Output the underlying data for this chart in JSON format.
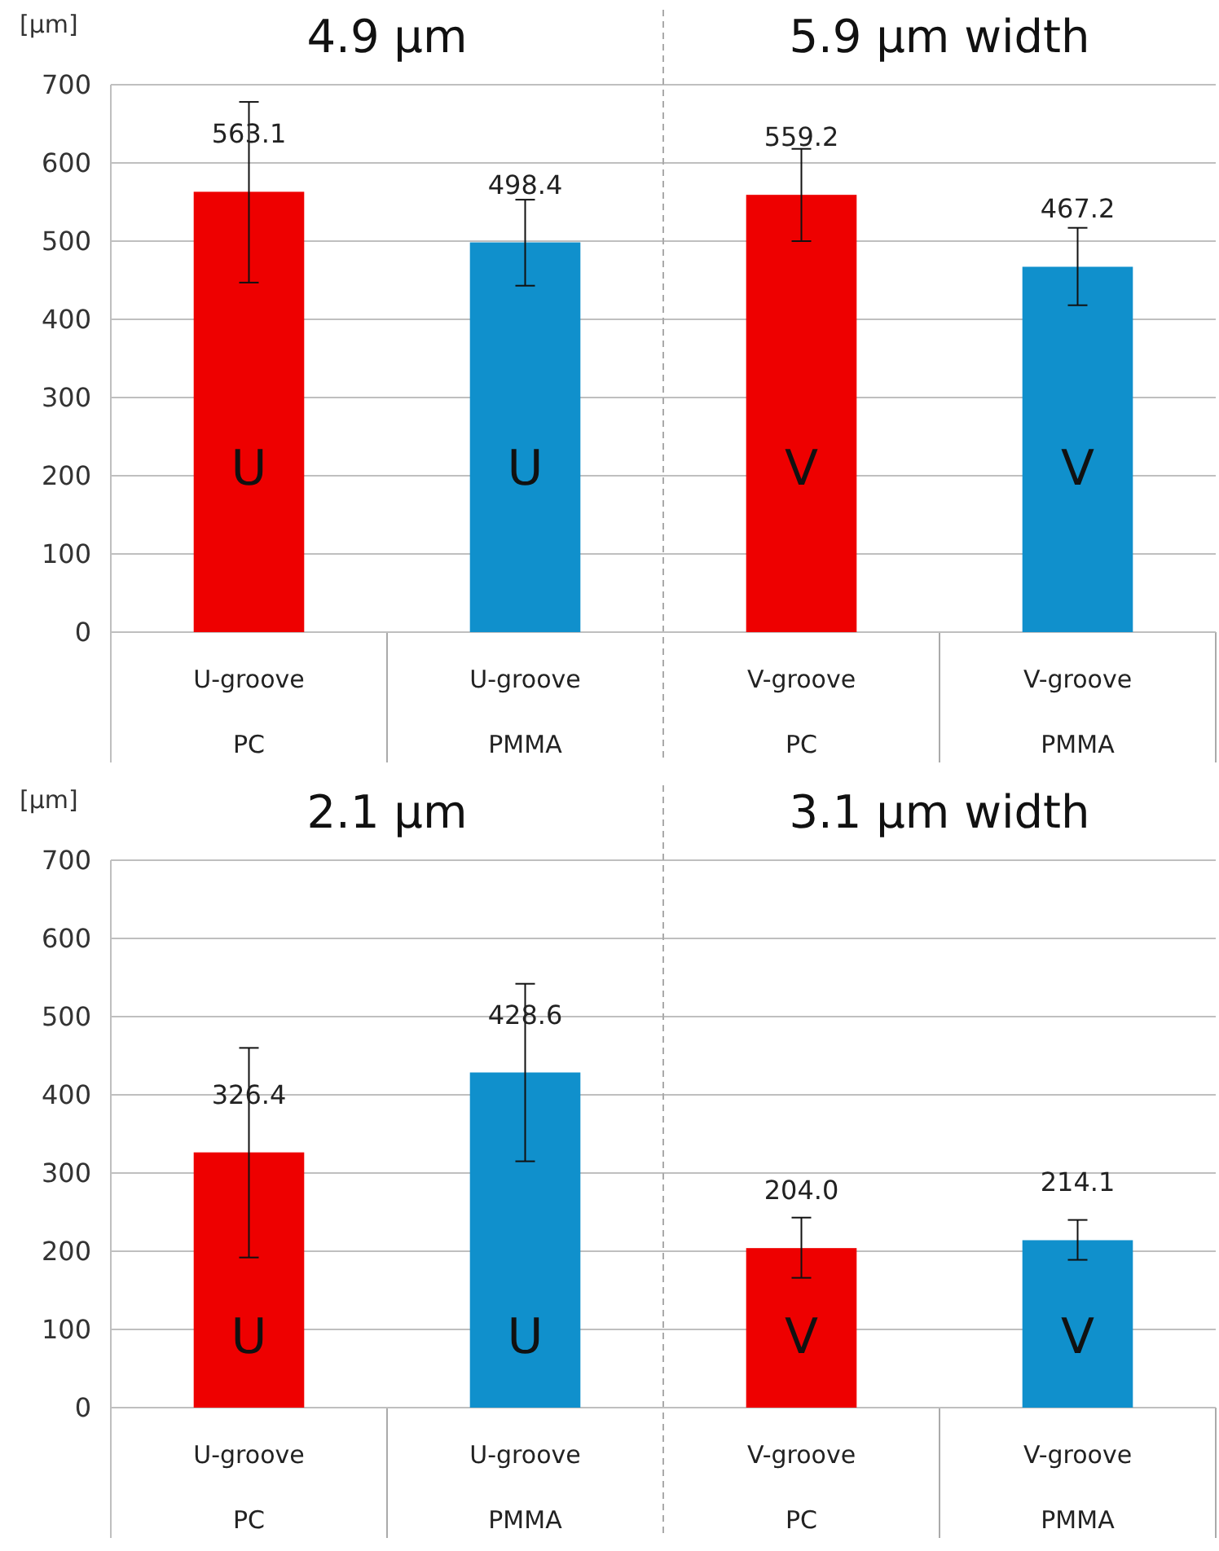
{
  "chart_data": [
    {
      "type": "bar",
      "ylabel": "[µm]",
      "annotations": [
        "4.9 µm",
        "5.9 µm width",
        "U",
        "U",
        "V",
        "V"
      ],
      "categories": [
        "U-groove\nPC",
        "U-groove\nPMMA",
        "V-groove\nPC",
        "V-groove\nPMMA"
      ],
      "values": [
        563.1,
        498.4,
        559.2,
        467.2
      ],
      "value_labels": [
        "563.1",
        "498.4",
        "559.2",
        "467.2"
      ],
      "errors": [
        [
          447,
          678
        ],
        [
          443,
          553
        ],
        [
          500,
          618
        ],
        [
          418,
          517
        ]
      ],
      "colors": [
        "#ee0000",
        "#1090cc",
        "#ee0000",
        "#1090cc"
      ],
      "ylim": [
        0,
        700
      ],
      "yticks": [
        0,
        100,
        200,
        300,
        400,
        500,
        600,
        700
      ],
      "grid": "y"
    },
    {
      "type": "bar",
      "ylabel": "[µm]",
      "annotations": [
        "2.1 µm",
        "3.1 µm width",
        "U",
        "U",
        "V",
        "V"
      ],
      "categories": [
        "U-groove\nPC",
        "U-groove\nPMMA",
        "V-groove\nPC",
        "V-groove\nPMMA"
      ],
      "values": [
        326.4,
        428.6,
        204.0,
        214.1
      ],
      "value_labels": [
        "326.4",
        "428.6",
        "204.0",
        "214.1"
      ],
      "errors": [
        [
          192,
          460
        ],
        [
          315,
          542
        ],
        [
          166,
          243
        ],
        [
          189,
          240
        ]
      ],
      "colors": [
        "#ee0000",
        "#1090cc",
        "#ee0000",
        "#1090cc"
      ],
      "ylim": [
        0,
        700
      ],
      "yticks": [
        0,
        100,
        200,
        300,
        400,
        500,
        600,
        700
      ],
      "grid": "y"
    }
  ]
}
